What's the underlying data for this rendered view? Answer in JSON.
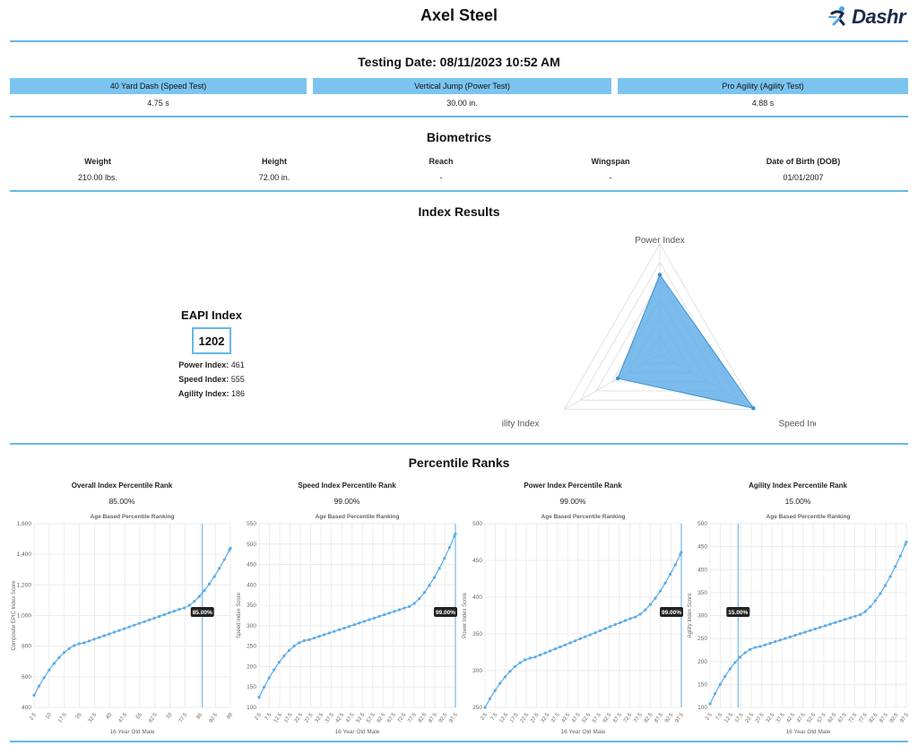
{
  "header": {
    "athlete_name": "Axel Steel",
    "logo_text": "Dashr"
  },
  "testing": {
    "title": "Testing Date: 08/11/2023 10:52 AM",
    "tests": [
      {
        "label": "40 Yard Dash (Speed Test)",
        "value": "4.75 s"
      },
      {
        "label": "Vertical Jump (Power Test)",
        "value": "30.00 in."
      },
      {
        "label": "Pro Agility (Agility Test)",
        "value": "4.88 s"
      }
    ]
  },
  "biometrics": {
    "title": "Biometrics",
    "items": [
      {
        "label": "Weight",
        "value": "210.00 lbs."
      },
      {
        "label": "Height",
        "value": "72.00 in."
      },
      {
        "label": "Reach",
        "value": "-"
      },
      {
        "label": "Wingspan",
        "value": "-"
      },
      {
        "label": "Date of Birth (DOB)",
        "value": "01/01/2007"
      }
    ]
  },
  "index_results": {
    "title": "Index Results",
    "eapi_title": "EAPI Index",
    "eapi_value": "1202",
    "power_label": "Power Index:",
    "power_value": "461",
    "speed_label": "Speed Index:",
    "speed_value": "555",
    "agility_label": "Agility Index:",
    "agility_value": "186"
  },
  "radar": {
    "axes": [
      "Power Index",
      "Speed Index",
      "Agility Index"
    ],
    "values": [
      0.72,
      0.98,
      0.44
    ],
    "fill_color": "#5aabe8"
  },
  "percentile": {
    "title": "Percentile Ranks",
    "subtitle": "Age Based Percentile Ranking",
    "xlabel": "16 Year Old Male"
  },
  "chart_data": [
    {
      "type": "line",
      "title": "Overall Index Percentile Rank",
      "rank_text": "85.00%",
      "ylabel": "Composite EPIC Index Score",
      "ylim": [
        400,
        1600
      ],
      "yticks": [
        400,
        600,
        800,
        1000,
        1200,
        1400,
        1600
      ],
      "ytick_labels": [
        "400",
        "600",
        "800",
        "1,000",
        "1,200",
        "1,400",
        "1,600"
      ],
      "xticks": [
        "2.5",
        "10",
        "17.5",
        "25",
        "32.5",
        "40",
        "47.5",
        "55",
        "62.5",
        "70",
        "77.5",
        "85",
        "92.5",
        "99"
      ],
      "start": 480,
      "q1": 820,
      "q3": 1045,
      "end": 1440,
      "marker": 85,
      "marker_label": "85.00%"
    },
    {
      "type": "line",
      "title": "Speed Index Percentile Rank",
      "rank_text": "99.00%",
      "ylabel": "Speed Index Score",
      "ylim": [
        100,
        550
      ],
      "yticks": [
        100,
        150,
        200,
        250,
        300,
        350,
        400,
        450,
        500,
        550
      ],
      "ytick_labels": [
        "100",
        "150",
        "200",
        "250",
        "300",
        "350",
        "400",
        "450",
        "500",
        "550"
      ],
      "xticks": [
        "2.5",
        "7.5",
        "12.5",
        "17.5",
        "22.5",
        "27.5",
        "32.5",
        "37.5",
        "42.5",
        "47.5",
        "52.5",
        "57.5",
        "62.5",
        "67.5",
        "72.5",
        "77.5",
        "82.5",
        "87.5",
        "92.5",
        "97.5"
      ],
      "start": 125,
      "q1": 265,
      "q3": 345,
      "end": 525,
      "marker": 99,
      "marker_label": "99.00%"
    },
    {
      "type": "line",
      "title": "Power Index Percentile Rank",
      "rank_text": "99.00%",
      "ylabel": "Power Index Score",
      "ylim": [
        250,
        500
      ],
      "yticks": [
        250,
        300,
        350,
        400,
        450,
        500
      ],
      "ytick_labels": [
        "250",
        "300",
        "350",
        "400",
        "450",
        "500"
      ],
      "xticks": [
        "2.5",
        "7.5",
        "12.5",
        "17.5",
        "22.5",
        "27.5",
        "32.5",
        "37.5",
        "42.5",
        "47.5",
        "52.5",
        "57.5",
        "62.5",
        "67.5",
        "72.5",
        "77.5",
        "82.5",
        "87.5",
        "92.5",
        "97.5"
      ],
      "start": 250,
      "q1": 318,
      "q3": 372,
      "end": 461,
      "marker": 99,
      "marker_label": "99.00%"
    },
    {
      "type": "line",
      "title": "Agility Index Percentile Rank",
      "rank_text": "15.00%",
      "ylabel": "Agility Index Score",
      "ylim": [
        100,
        500
      ],
      "yticks": [
        100,
        150,
        200,
        250,
        300,
        350,
        400,
        450,
        500
      ],
      "ytick_labels": [
        "100",
        "150",
        "200",
        "250",
        "300",
        "350",
        "400",
        "450",
        "500"
      ],
      "xticks": [
        "2.5",
        "7.5",
        "12.5",
        "17.5",
        "22.5",
        "27.5",
        "32.5",
        "37.5",
        "42.5",
        "47.5",
        "52.5",
        "57.5",
        "62.5",
        "67.5",
        "72.5",
        "77.5",
        "82.5",
        "87.5",
        "92.5",
        "97.5"
      ],
      "start": 108,
      "q1": 232,
      "q3": 300,
      "end": 460,
      "marker": 15,
      "marker_label": "15.00%"
    }
  ]
}
